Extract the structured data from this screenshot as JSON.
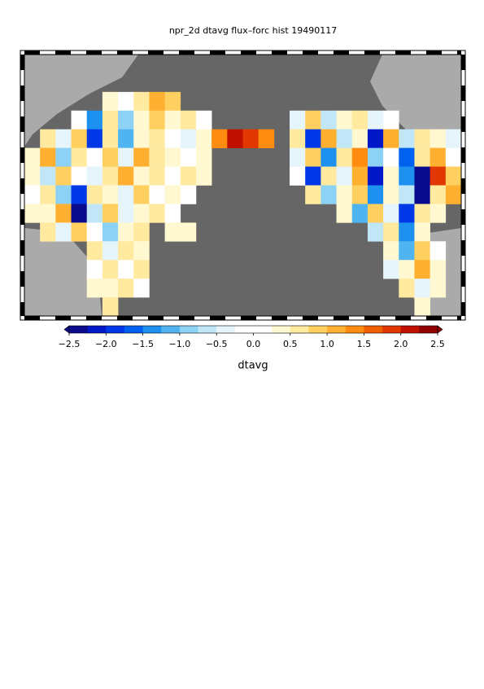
{
  "chart_data": {
    "type": "map",
    "title": "npr_2d dtavg flux–forc hist 19490117",
    "field": {
      "rows": [
        [
          null,
          null,
          null,
          null,
          null,
          null,
          null,
          null,
          null,
          null,
          null,
          null,
          null,
          null,
          null,
          null,
          null,
          null,
          null,
          null,
          null,
          null,
          null,
          null,
          null,
          null,
          null,
          null
        ],
        [
          null,
          null,
          null,
          null,
          null,
          null,
          null,
          null,
          null,
          null,
          null,
          null,
          null,
          null,
          null,
          null,
          null,
          null,
          null,
          null,
          null,
          null,
          null,
          null,
          null,
          null,
          null,
          null
        ],
        [
          null,
          null,
          null,
          null,
          null,
          0.3,
          -0.2,
          0.6,
          1.2,
          0.8,
          null,
          null,
          null,
          null,
          null,
          null,
          null,
          null,
          null,
          null,
          null,
          null,
          null,
          null,
          null,
          null,
          null,
          null
        ],
        [
          null,
          null,
          null,
          0.2,
          -1.5,
          0.5,
          -0.8,
          0.4,
          0.9,
          0.3,
          0.6,
          0.2,
          null,
          null,
          null,
          null,
          null,
          -0.4,
          0.8,
          -0.6,
          0.3,
          0.5,
          -0.3,
          0.2,
          null,
          null,
          null,
          null
        ],
        [
          null,
          0.5,
          -0.3,
          0.8,
          -2.0,
          0.6,
          -1.2,
          0.4,
          0.7,
          0.2,
          -0.5,
          0.3,
          1.4,
          2.1,
          1.8,
          1.3,
          null,
          0.6,
          -1.8,
          1.2,
          -0.7,
          0.4,
          -2.1,
          1.0,
          -0.6,
          0.7,
          0.3,
          -0.4
        ],
        [
          0.3,
          1.2,
          -1.0,
          0.5,
          0.2,
          0.9,
          -0.4,
          1.1,
          0.6,
          0.3,
          -0.2,
          0.4,
          null,
          null,
          null,
          null,
          null,
          -0.3,
          0.9,
          -1.4,
          0.5,
          1.3,
          -0.8,
          0.2,
          -1.6,
          0.6,
          1.1,
          0.2
        ],
        [
          0.4,
          -0.6,
          0.9,
          0.2,
          -0.3,
          0.5,
          1.0,
          0.3,
          0.7,
          -0.1,
          0.5,
          0.3,
          null,
          null,
          null,
          null,
          null,
          0.2,
          -1.9,
          0.7,
          -0.5,
          1.1,
          -2.2,
          0.4,
          -1.3,
          -2.3,
          1.9,
          0.8
        ],
        [
          0.2,
          0.5,
          -0.9,
          -1.8,
          0.6,
          0.3,
          -0.4,
          0.8,
          0.2,
          0.4,
          0.1,
          null,
          null,
          null,
          null,
          null,
          null,
          null,
          0.6,
          -0.8,
          0.3,
          0.9,
          -1.5,
          0.4,
          -0.7,
          -2.4,
          0.5,
          1.2
        ],
        [
          0.3,
          0.4,
          1.1,
          -2.4,
          -0.7,
          0.8,
          -0.5,
          0.3,
          0.6,
          -0.2,
          null,
          null,
          null,
          null,
          null,
          null,
          null,
          null,
          null,
          null,
          0.4,
          -1.2,
          0.8,
          -0.3,
          -1.8,
          0.6,
          0.3,
          null
        ],
        [
          null,
          0.6,
          -0.4,
          0.9,
          0.2,
          -0.8,
          0.3,
          0.5,
          null,
          0.4,
          0.3,
          null,
          null,
          null,
          null,
          null,
          null,
          null,
          null,
          null,
          null,
          null,
          -0.6,
          0.7,
          -1.5,
          0.4,
          null,
          null
        ],
        [
          null,
          null,
          null,
          null,
          0.5,
          -0.3,
          0.6,
          0.4,
          null,
          null,
          null,
          null,
          null,
          null,
          null,
          null,
          null,
          null,
          null,
          null,
          null,
          null,
          null,
          0.3,
          -1.2,
          0.8,
          0.2,
          null
        ],
        [
          null,
          null,
          null,
          null,
          0.2,
          0.6,
          -0.2,
          0.5,
          null,
          null,
          null,
          null,
          null,
          null,
          null,
          null,
          null,
          null,
          null,
          null,
          null,
          null,
          null,
          -0.5,
          0.4,
          1.0,
          0.3,
          null
        ],
        [
          null,
          null,
          null,
          null,
          0.4,
          0.3,
          0.5,
          0.2,
          null,
          null,
          null,
          null,
          null,
          null,
          null,
          null,
          null,
          null,
          null,
          null,
          null,
          null,
          null,
          null,
          0.6,
          -0.3,
          0.4,
          null
        ],
        [
          null,
          null,
          null,
          null,
          null,
          0.5,
          null,
          null,
          null,
          null,
          null,
          null,
          null,
          null,
          null,
          null,
          null,
          null,
          null,
          null,
          null,
          null,
          null,
          null,
          null,
          0.3,
          null,
          null
        ]
      ]
    },
    "colorbar": {
      "label": "dtavg",
      "ticks": [
        {
          "value": -2.5,
          "label": "−2.5"
        },
        {
          "value": -2,
          "label": "−2.0"
        },
        {
          "value": -1.5,
          "label": "−1.5"
        },
        {
          "value": -1,
          "label": "−1.0"
        },
        {
          "value": -0.5,
          "label": "−0.5"
        },
        {
          "value": 0,
          "label": "0.0"
        },
        0.5,
        {
          "value": 1,
          "label": "1.0"
        },
        1.5,
        {
          "value": 2,
          "label": "2.0"
        },
        2.5
      ],
      "colors": [
        "#0a0a8c",
        "#0018c8",
        "#0038e8",
        "#0060f0",
        "#1e90f0",
        "#50b4f0",
        "#8cd2f5",
        "#c0e6f8",
        "#e6f4fb",
        "#ffffff",
        "#ffffff",
        "#fff8d0",
        "#ffeaa0",
        "#ffd060",
        "#ffb030",
        "#ff8c10",
        "#f06000",
        "#e03800",
        "#c01000",
        "#900000"
      ]
    }
  }
}
